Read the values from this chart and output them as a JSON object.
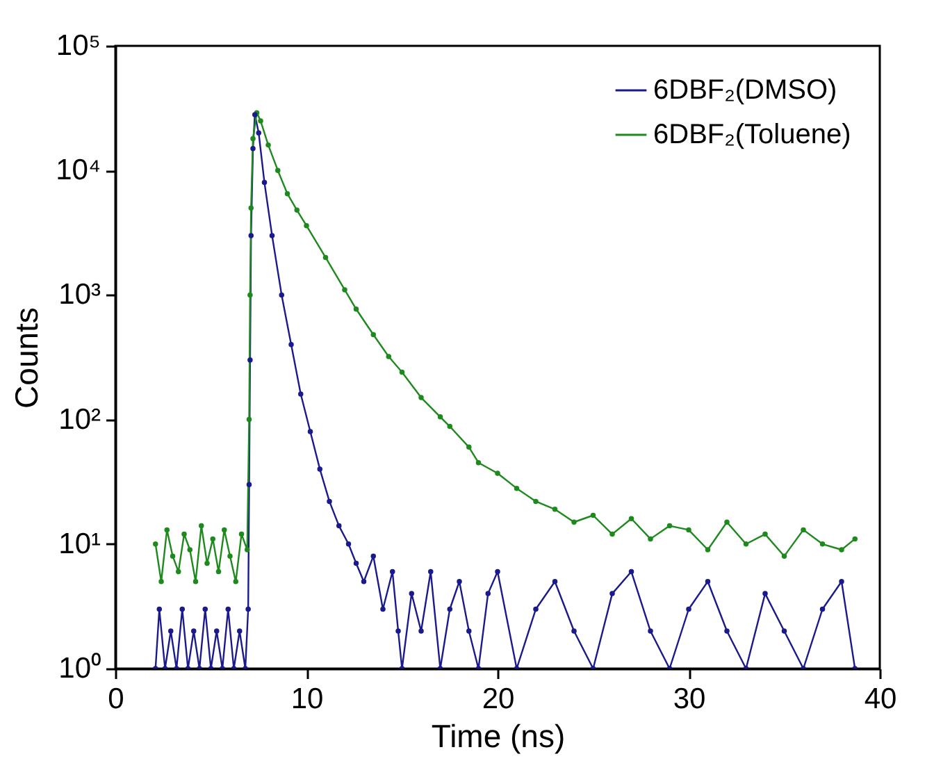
{
  "chart_data": {
    "type": "line",
    "xlabel": "Time (ns)",
    "ylabel": "Counts",
    "xlim": [
      0,
      40
    ],
    "xticks": [
      0,
      10,
      20,
      30,
      40
    ],
    "ylim": [
      1,
      100000
    ],
    "yticks": [
      {
        "value": 1,
        "label": "10⁰"
      },
      {
        "value": 10,
        "label": "10¹"
      },
      {
        "value": 100,
        "label": "10²"
      },
      {
        "value": 1000,
        "label": "10³"
      },
      {
        "value": 10000,
        "label": "10⁴"
      },
      {
        "value": 100000,
        "label": "10⁵"
      }
    ],
    "log": "y",
    "legend": "top right",
    "marker": "circle",
    "line_style": "solid",
    "series": [
      {
        "name": "6DBF₂(DMSO)",
        "color": "#1a1a8c",
        "x": [
          2.1,
          2.3,
          2.6,
          2.9,
          3.2,
          3.5,
          3.8,
          4.1,
          4.4,
          4.7,
          5.0,
          5.3,
          5.6,
          5.9,
          6.2,
          6.5,
          6.8,
          6.95,
          7.0,
          7.05,
          7.1,
          7.2,
          7.3,
          7.5,
          7.8,
          8.2,
          8.7,
          9.2,
          9.7,
          10.2,
          10.7,
          11.2,
          11.7,
          12.2,
          12.6,
          13.0,
          13.5,
          14.0,
          14.5,
          14.8,
          15.0,
          15.5,
          16,
          16.5,
          17,
          17.5,
          18,
          18.5,
          19,
          19.5,
          20,
          21,
          22,
          23,
          24,
          25,
          26,
          27,
          28,
          29,
          30,
          31,
          32,
          33,
          34,
          35,
          36,
          37,
          38,
          38.7
        ],
        "values": [
          1,
          3,
          1,
          2,
          1,
          3,
          1,
          2,
          1,
          3,
          1,
          2,
          1,
          3,
          1,
          2,
          1,
          3,
          30,
          300,
          3000,
          15000,
          28000,
          20000,
          8000,
          3000,
          1000,
          400,
          160,
          80,
          40,
          22,
          14,
          10,
          7,
          5,
          8,
          3,
          6,
          2,
          1,
          4,
          2,
          6,
          1,
          3,
          5,
          2,
          1,
          4,
          6,
          1,
          3,
          5,
          2,
          1,
          4,
          6,
          2,
          1,
          3,
          5,
          2,
          1,
          4,
          2,
          1,
          3,
          5,
          1
        ]
      },
      {
        "name": "6DBF₂(Toluene)",
        "color": "#1e8a1e",
        "x": [
          2.1,
          2.4,
          2.7,
          3,
          3.3,
          3.6,
          3.9,
          4.2,
          4.5,
          4.8,
          5.1,
          5.4,
          5.7,
          6,
          6.3,
          6.6,
          6.9,
          7.0,
          7.05,
          7.1,
          7.2,
          7.4,
          7.6,
          8,
          8.5,
          9,
          9.5,
          10,
          11,
          12,
          12.6,
          13.5,
          14.3,
          15,
          16,
          17,
          17.5,
          18.5,
          19,
          20,
          21,
          22,
          23,
          24,
          25,
          26,
          27,
          28,
          29,
          30,
          31,
          32,
          33,
          34,
          35,
          36,
          37,
          38,
          38.7
        ],
        "values": [
          10,
          5,
          13,
          8,
          6,
          12,
          9,
          5,
          14,
          7,
          11,
          6,
          13,
          8,
          5,
          12,
          9,
          100,
          1000,
          5000,
          18000,
          29000,
          25000,
          16000,
          10000,
          6500,
          4800,
          3600,
          2000,
          1100,
          770,
          480,
          320,
          240,
          150,
          105,
          88,
          60,
          45,
          37,
          28,
          22,
          19,
          15,
          17,
          12,
          16,
          11,
          14,
          13,
          9,
          15,
          10,
          12,
          8,
          13,
          10,
          9,
          11
        ]
      }
    ]
  }
}
